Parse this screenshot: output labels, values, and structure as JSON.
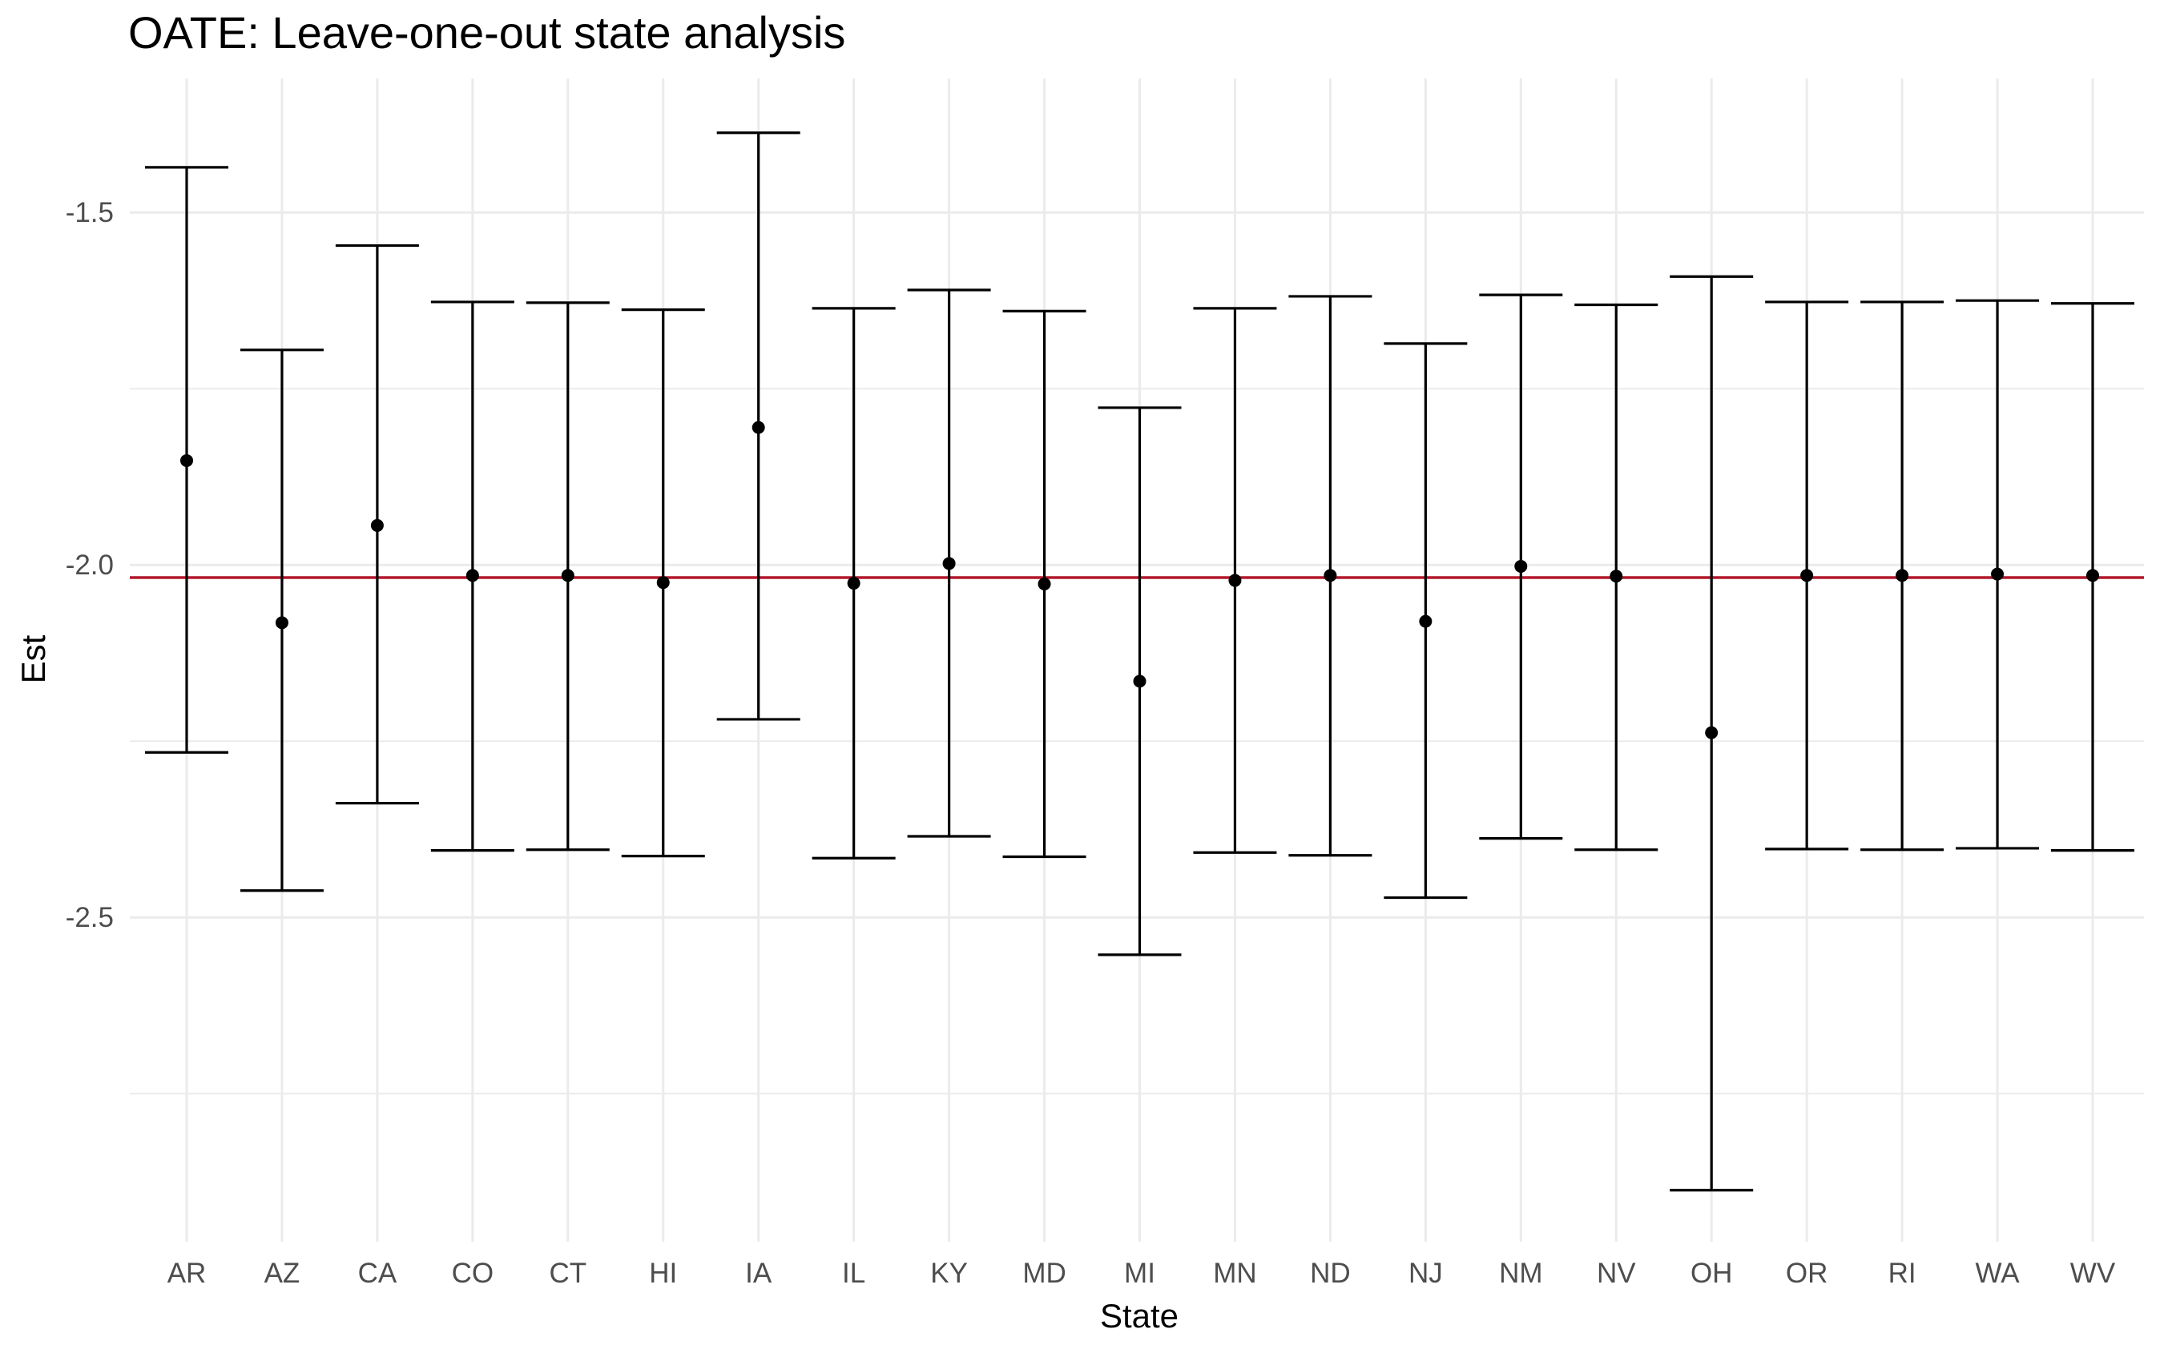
{
  "chart_data": {
    "type": "errorbar",
    "title": "OATE: Leave-one-out state analysis",
    "xlabel": "State",
    "ylabel": "Est",
    "ylim": [
      -2.96,
      -1.31
    ],
    "yticks": [
      -1.5,
      -2.0,
      -2.5
    ],
    "ytick_labels": [
      "-1.5",
      "-2.0",
      "-2.5"
    ],
    "minor_yticks": [
      -1.75,
      -2.25,
      -2.75
    ],
    "grid": true,
    "reference_line": {
      "value": -2.018,
      "color": "#b2182b"
    },
    "categories": [
      "AR",
      "AZ",
      "CA",
      "CO",
      "CT",
      "HI",
      "IA",
      "IL",
      "KY",
      "MD",
      "MI",
      "MN",
      "ND",
      "NJ",
      "NM",
      "NV",
      "OH",
      "OR",
      "RI",
      "WA",
      "WV"
    ],
    "series": [
      {
        "name": "estimate",
        "values": [
          -1.852,
          -2.082,
          -1.944,
          -2.015,
          -2.015,
          -2.025,
          -1.805,
          -2.026,
          -1.998,
          -2.027,
          -2.165,
          -2.022,
          -2.015,
          -2.08,
          -2.002,
          -2.016,
          -2.238,
          -2.015,
          -2.015,
          -2.013,
          -2.015
        ]
      },
      {
        "name": "lower",
        "values": [
          -2.266,
          -2.462,
          -2.338,
          -2.405,
          -2.404,
          -2.413,
          -2.219,
          -2.416,
          -2.385,
          -2.414,
          -2.553,
          -2.408,
          -2.412,
          -2.472,
          -2.388,
          -2.404,
          -2.887,
          -2.403,
          -2.404,
          -2.402,
          -2.405
        ]
      },
      {
        "name": "upper",
        "values": [
          -1.436,
          -1.695,
          -1.547,
          -1.627,
          -1.628,
          -1.638,
          -1.387,
          -1.636,
          -1.61,
          -1.64,
          -1.777,
          -1.636,
          -1.619,
          -1.686,
          -1.617,
          -1.631,
          -1.591,
          -1.627,
          -1.627,
          -1.625,
          -1.629
        ]
      }
    ],
    "colors": {
      "points": "#000000",
      "errorbars": "#000000",
      "grid": "#ebebeb",
      "reference": "#b2182b"
    }
  }
}
